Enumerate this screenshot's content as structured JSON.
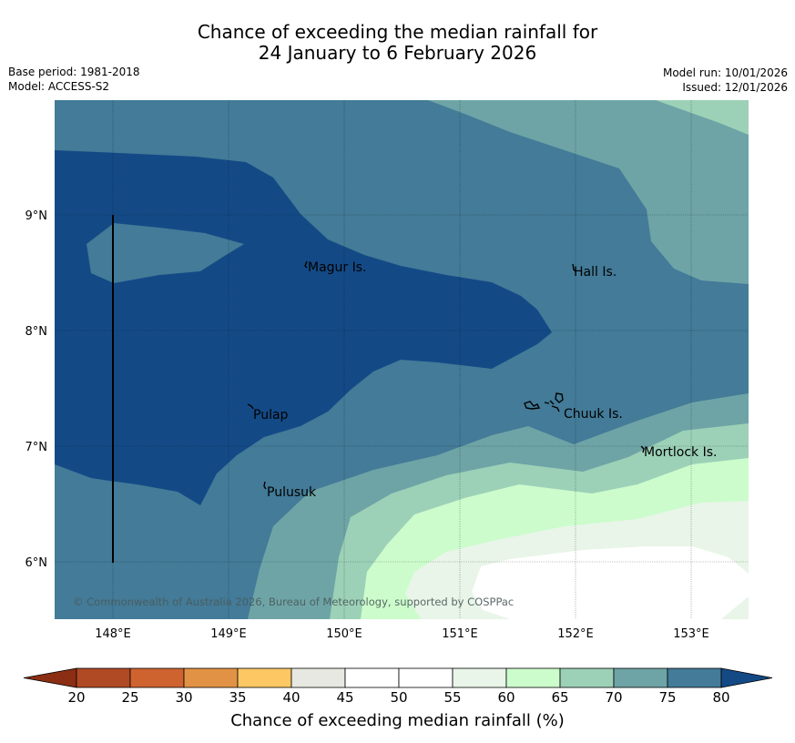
{
  "title": {
    "line1": "Chance of exceeding the median rainfall for",
    "line2": "24 January to 6 February 2026"
  },
  "meta": {
    "base_period": "Base period: 1981-2018",
    "model": "Model: ACCESS-S2",
    "model_run": "Model run: 10/01/2026",
    "issued": "Issued: 12/01/2026"
  },
  "axes": {
    "x_ticks": [
      "148°E",
      "149°E",
      "150°E",
      "151°E",
      "152°E",
      "153°E"
    ],
    "y_ticks": [
      "9°N",
      "8°N",
      "7°N",
      "6°N"
    ]
  },
  "places": {
    "magur": "Magur Is.",
    "hall": "Hall Is.",
    "pulap": "Pulap",
    "chuuk": "Chuuk Is.",
    "mortlock": "Mortlock Is.",
    "pulusuk": "Pulusuk"
  },
  "copyright": "© Commonwealth of Australia 2026, Bureau of Meteorology, supported by COSPPac",
  "colorbar": {
    "label": "Chance of exceeding median rainfall (%)",
    "ticks": [
      "20",
      "25",
      "30",
      "35",
      "40",
      "45",
      "50",
      "55",
      "60",
      "65",
      "70",
      "75",
      "80"
    ]
  },
  "colors": {
    "lt20": "#8b2e14",
    "c20_25": "#b04a24",
    "c25_30": "#cf6330",
    "c30_35": "#e29244",
    "c35_40": "#fdc864",
    "c40_45": "#e8e8e2",
    "c45_55": "#ffffff",
    "c55_60": "#e8f5e8",
    "c60_65": "#ccfccc",
    "c65_70": "#9cd1b7",
    "c70_75": "#6ea4a6",
    "c75_80": "#437b98",
    "gt80": "#134a86"
  }
}
